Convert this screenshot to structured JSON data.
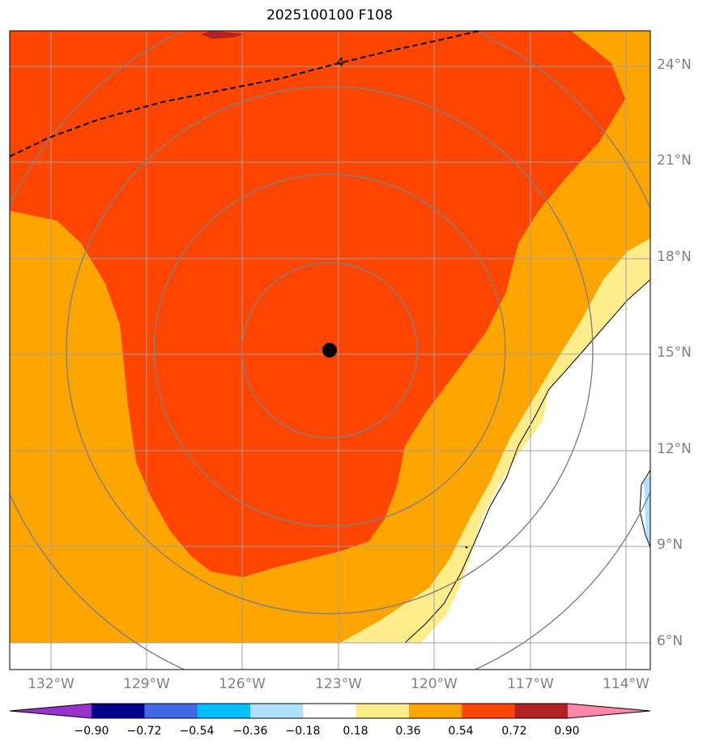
{
  "title": "2025100100 F108",
  "colors": {
    "orange_red": "#ff4500",
    "orange": "#ffa500",
    "light_yellow": "#ffec8b",
    "light_blue": "#b0e2ff",
    "dark_red": "#b22222",
    "ocean_white": "#ffffff",
    "grid": "#a0a0a0",
    "range_rings": "#808080",
    "coastline": "#000000"
  },
  "lat_labels": [
    "24°N",
    "21°N",
    "18°N",
    "15°N",
    "12°N",
    "9°N",
    "6°N"
  ],
  "lon_labels": [
    "132°W",
    "129°W",
    "126°W",
    "123°W",
    "120°W",
    "117°W",
    "114°W"
  ],
  "contour_label": "4",
  "storm_center": {
    "lon": -123.3,
    "lat": 15.1,
    "marker": "black-dot"
  },
  "colorbar": {
    "labels": [
      "−0.90",
      "−0.72",
      "−0.54",
      "−0.36",
      "−0.18",
      "0.18",
      "0.36",
      "0.54",
      "0.72",
      "0.90"
    ],
    "colors": [
      "#9932cc",
      "#00008b",
      "#4169e1",
      "#00bfff",
      "#b0e2ff",
      "#ffffff",
      "#ffec8b",
      "#ffa500",
      "#ff4500",
      "#b22222",
      "#ff88aa"
    ]
  }
}
